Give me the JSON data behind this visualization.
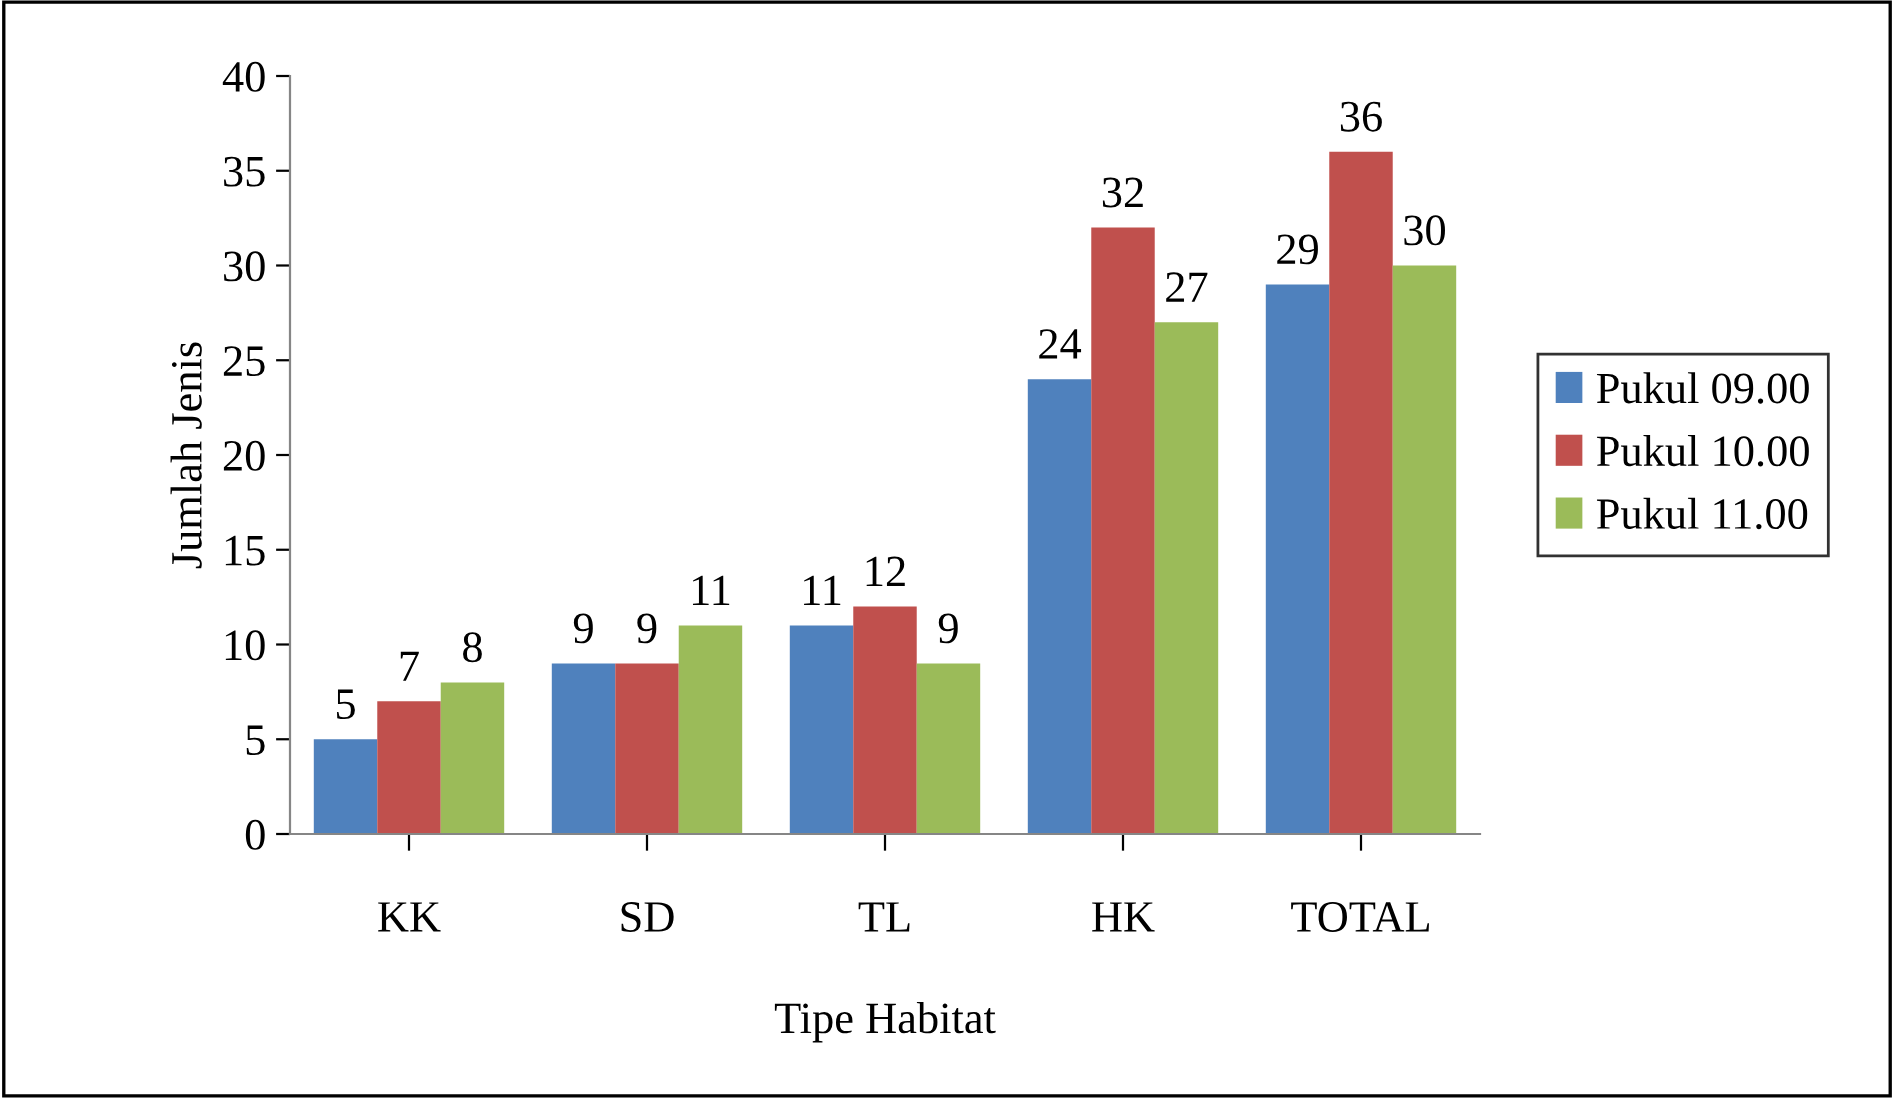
{
  "chart_data": {
    "type": "bar",
    "xlabel": "Tipe Habitat",
    "ylabel": "Jumlah Jenis",
    "categories": [
      "KK",
      "SD",
      "TL",
      "HK",
      "TOTAL"
    ],
    "series": [
      {
        "name": "Pukul 09.00",
        "color": "#4f81bd",
        "values": [
          5,
          9,
          11,
          24,
          29
        ]
      },
      {
        "name": "Pukul 10.00",
        "color": "#c0504d",
        "values": [
          7,
          9,
          12,
          32,
          36
        ]
      },
      {
        "name": "Pukul 11.00",
        "color": "#9bbb59",
        "values": [
          8,
          11,
          9,
          27,
          30
        ]
      }
    ],
    "ylim": [
      0,
      40
    ],
    "yticks": [
      0,
      5,
      10,
      15,
      20,
      25,
      30,
      35,
      40
    ],
    "grid": false,
    "legend": "right",
    "data_labels": true
  }
}
